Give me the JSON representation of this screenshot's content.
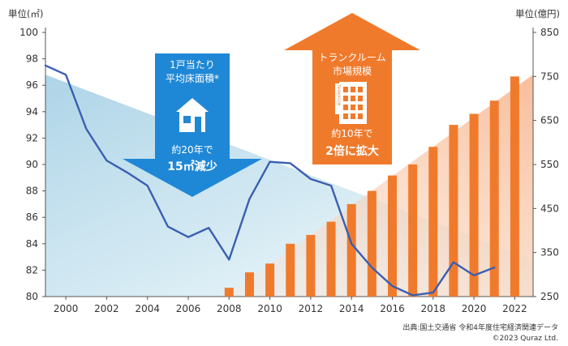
{
  "chart_data": {
    "type": "bar+line",
    "left_axis": {
      "unit_label": "単位(㎡)",
      "ticks": [
        80,
        82,
        84,
        86,
        88,
        90,
        92,
        94,
        96,
        98,
        100
      ],
      "range": [
        80,
        100
      ]
    },
    "right_axis": {
      "unit_label": "単位(億円)",
      "ticks": [
        250,
        350,
        450,
        550,
        650,
        750,
        850
      ],
      "range": [
        250,
        850
      ]
    },
    "x_ticks": [
      "2000",
      "2002",
      "2004",
      "2006",
      "2008",
      "2010",
      "2012",
      "2014",
      "2016",
      "2018",
      "2020",
      "2022"
    ],
    "bars": {
      "axis": "right",
      "color": "#f07a2c",
      "x": [
        2008,
        2009,
        2010,
        2011,
        2012,
        2013,
        2014,
        2015,
        2016,
        2017,
        2018,
        2019,
        2020,
        2021,
        2022
      ],
      "values": [
        270,
        305,
        325,
        370,
        390,
        420,
        460,
        490,
        525,
        550,
        590,
        640,
        665,
        695,
        750
      ]
    },
    "line": {
      "axis": "left",
      "color": "#3a5fb0",
      "x": [
        1999,
        2000,
        2001,
        2002,
        2003,
        2004,
        2005,
        2006,
        2007,
        2008,
        2009,
        2010,
        2011,
        2012,
        2013,
        2014,
        2015,
        2016,
        2017,
        2018,
        2019,
        2020,
        2021
      ],
      "values": [
        97.5,
        96.8,
        92.7,
        90.3,
        89.4,
        88.4,
        85.3,
        84.5,
        85.2,
        82.8,
        87.4,
        90.2,
        90.1,
        88.9,
        88.4,
        84.0,
        82.2,
        80.8,
        80.1,
        80.3,
        82.6,
        81.6,
        82.2
      ]
    },
    "annotations": {
      "decrease": {
        "line1": "1戸当たり",
        "line2": "平均床面積*",
        "line3": "約20年で",
        "line4": "15㎡減少",
        "color": "#1f88d6",
        "icon": "house-icon"
      },
      "increase": {
        "line1": "トランクルーム",
        "line2": "市場規模",
        "line3": "約10年で",
        "line4": "2倍に拡大",
        "color": "#f07a2c",
        "icon": "storage-building-icon",
        "building_sign": "TRUNKROOM"
      }
    },
    "source": {
      "line1": "出典:国土交通省 令和4年度住宅経済関連データ",
      "line2": "©2023 Quraz Ltd."
    }
  }
}
